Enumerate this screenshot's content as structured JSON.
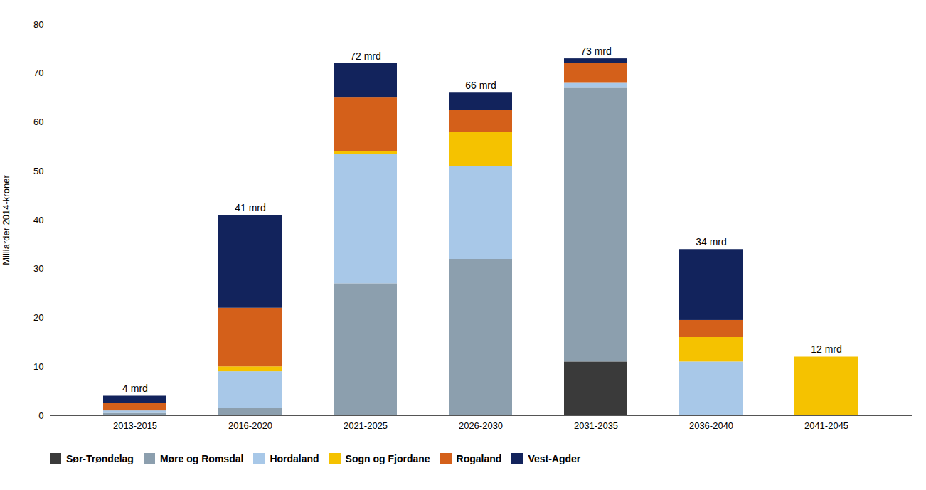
{
  "chart_data": {
    "type": "bar",
    "stacked": true,
    "categories": [
      "2013-2015",
      "2016-2020",
      "2021-2025",
      "2026-2030",
      "2031-2035",
      "2036-2040",
      "2041-2045"
    ],
    "series": [
      {
        "name": "Sør-Trøndelag",
        "color": "#3a3a3a",
        "values": [
          0.0,
          0.0,
          0.0,
          0.0,
          11.0,
          0.0,
          0.0
        ]
      },
      {
        "name": "Møre og Romsdal",
        "color": "#8c9fae",
        "values": [
          0.5,
          1.5,
          27.0,
          32.0,
          56.0,
          0.0,
          0.0
        ]
      },
      {
        "name": "Hordaland",
        "color": "#a8c8e8",
        "values": [
          0.5,
          7.5,
          26.5,
          19.0,
          1.0,
          11.0,
          0.0
        ]
      },
      {
        "name": "Sogn og Fjordane",
        "color": "#f5c200",
        "values": [
          0.0,
          1.0,
          0.5,
          7.0,
          0.0,
          5.0,
          12.0
        ]
      },
      {
        "name": "Rogaland",
        "color": "#d4601a",
        "values": [
          1.5,
          12.0,
          11.0,
          4.5,
          4.0,
          3.5,
          0.0
        ]
      },
      {
        "name": "Vest-Agder",
        "color": "#12235c",
        "values": [
          1.5,
          19.0,
          7.0,
          3.5,
          1.0,
          14.5,
          0.0
        ]
      }
    ],
    "totals": {
      "values": [
        4,
        41,
        72,
        66,
        73,
        34,
        12
      ],
      "value_labels": [
        "4 mrd",
        "41 mrd",
        "72 mrd",
        "66 mrd",
        "73 mrd",
        "34 mrd",
        "12 mrd"
      ]
    },
    "ylabel": "Milliarder 2014-kroner",
    "ylim": [
      0,
      80
    ],
    "yticks": [
      0,
      10,
      20,
      30,
      40,
      50,
      60,
      70,
      80
    ],
    "grid": false,
    "legend": "bottom"
  }
}
